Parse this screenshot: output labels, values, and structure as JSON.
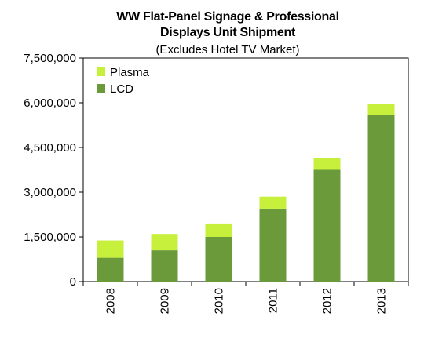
{
  "chart_data": {
    "type": "bar",
    "stacked": true,
    "title_line1": "WW Flat-Panel Signage & Professional",
    "title_line2": "Displays Unit Shipment",
    "subtitle": "(Excludes Hotel TV Market)",
    "categories": [
      "2008",
      "2009",
      "2010",
      "2011",
      "2012",
      "2013"
    ],
    "series": [
      {
        "name": "LCD",
        "color": "#6b9a3a",
        "values": [
          800000,
          1050000,
          1500000,
          2450000,
          3750000,
          5600000
        ]
      },
      {
        "name": "Plasma",
        "color": "#c6f03c",
        "values": [
          580000,
          550000,
          450000,
          400000,
          400000,
          350000
        ]
      }
    ],
    "ylim": [
      0,
      7500000
    ],
    "yticks": [
      {
        "value": 0,
        "label": "0"
      },
      {
        "value": 1500000,
        "label": "1,500,000"
      },
      {
        "value": 3000000,
        "label": "3,000,000"
      },
      {
        "value": 4500000,
        "label": "4,500,000"
      },
      {
        "value": 6000000,
        "label": "6,000,000"
      },
      {
        "value": 7500000,
        "label": "7,500,000"
      }
    ],
    "legend": {
      "placement": "top-left",
      "entries": [
        "Plasma",
        "LCD"
      ]
    },
    "grid": false
  }
}
